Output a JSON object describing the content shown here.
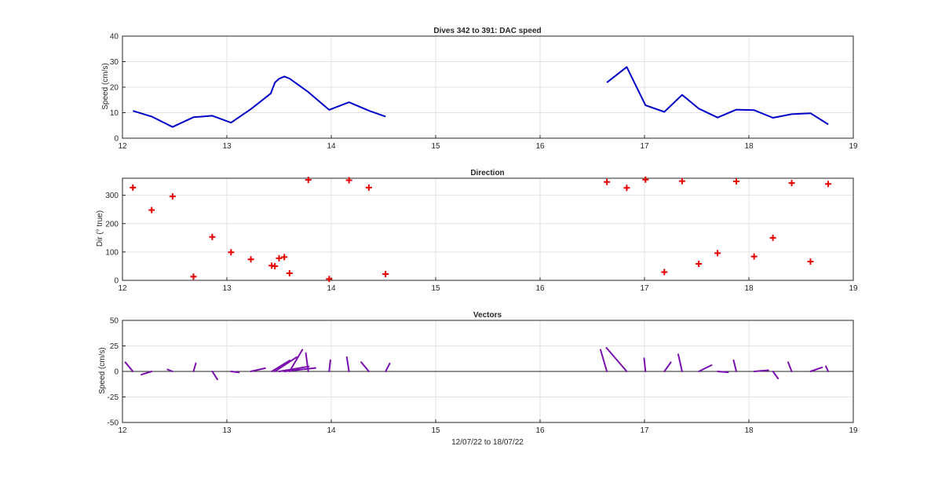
{
  "figure_xlabel": "12/07/22 to 18/07/22",
  "colors": {
    "speed": "#0000c8",
    "direction": "#e60000",
    "vectors": "#7a0fb0",
    "axes": "#262626"
  },
  "chart_data": [
    {
      "type": "line",
      "title": "Dives 342 to 391: DAC speed",
      "xlabel": "",
      "ylabel": "Speed (cm/s)",
      "xlim": [
        12,
        19
      ],
      "ylim": [
        0,
        40
      ],
      "xticks": [
        "12",
        "13",
        "14",
        "15",
        "16",
        "17",
        "18",
        "19"
      ],
      "yticks": [
        "0",
        "10",
        "20",
        "30",
        "40"
      ],
      "grid": true,
      "segments": [
        {
          "x": [
            12.1,
            12.28,
            12.48,
            12.68,
            12.86,
            13.04,
            13.23,
            13.42,
            13.46,
            13.5,
            13.55,
            13.6,
            13.78,
            13.98,
            14.17,
            14.36,
            14.52
          ],
          "y": [
            10.7,
            8.5,
            4.4,
            8.2,
            8.8,
            6.1,
            11.4,
            17.5,
            21.8,
            23.3,
            24.2,
            23.4,
            18.1,
            11.1,
            14.1,
            10.8,
            8.5
          ]
        },
        {
          "x": [
            16.64,
            16.83,
            17.01,
            17.19,
            17.36,
            17.52,
            17.7,
            17.88,
            18.05,
            18.23,
            18.41,
            18.59,
            18.76
          ],
          "y": [
            21.8,
            27.9,
            12.9,
            10.3,
            17.0,
            11.6,
            8.1,
            11.2,
            11.0,
            8.0,
            9.4,
            9.8,
            5.4
          ]
        }
      ]
    },
    {
      "type": "scatter",
      "title": "Direction",
      "xlabel": "",
      "ylabel": "Dir (° true)",
      "xlim": [
        12,
        19
      ],
      "ylim": [
        0,
        360
      ],
      "xticks": [
        "12",
        "13",
        "14",
        "15",
        "16",
        "17",
        "18",
        "19"
      ],
      "yticks": [
        "0",
        "100",
        "200",
        "300"
      ],
      "grid": true,
      "marker": "+",
      "x": [
        12.1,
        12.28,
        12.48,
        12.68,
        12.86,
        13.04,
        13.23,
        13.43,
        13.46,
        13.5,
        13.55,
        13.6,
        13.78,
        13.98,
        14.17,
        14.36,
        14.52,
        16.64,
        16.83,
        17.01,
        17.19,
        17.36,
        17.52,
        17.7,
        17.88,
        18.05,
        18.23,
        18.41,
        18.59,
        18.76
      ],
      "y": [
        327,
        248,
        296,
        13,
        153,
        99,
        74,
        52,
        50,
        78,
        82,
        25,
        354,
        5,
        353,
        327,
        22,
        347,
        326,
        355,
        29,
        350,
        58,
        96,
        349,
        84,
        150,
        343,
        66,
        340
      ]
    },
    {
      "type": "vector",
      "title": "Vectors",
      "xlabel": "",
      "ylabel": "Speed (cm/s)",
      "xlim": [
        12,
        19
      ],
      "ylim": [
        -50,
        50
      ],
      "xticks": [
        "12",
        "13",
        "14",
        "15",
        "16",
        "17",
        "18",
        "19"
      ],
      "yticks": [
        "-50",
        "-25",
        "0",
        "25",
        "50"
      ],
      "grid": true,
      "note_units": "direction in degrees true, speed in cm/s",
      "x": [
        12.1,
        12.28,
        12.48,
        12.68,
        12.86,
        13.04,
        13.23,
        13.43,
        13.46,
        13.5,
        13.55,
        13.6,
        13.78,
        13.98,
        14.17,
        14.36,
        14.52,
        16.64,
        16.83,
        17.01,
        17.19,
        17.36,
        17.52,
        17.7,
        17.88,
        18.05,
        18.23,
        18.41,
        18.59,
        18.76
      ],
      "speed": [
        10.7,
        8.5,
        4.4,
        8.2,
        8.8,
        6.1,
        11.4,
        17.5,
        21.8,
        23.3,
        24.2,
        23.4,
        18.1,
        11.1,
        14.1,
        10.8,
        8.5,
        21.8,
        27.9,
        12.9,
        10.3,
        17.0,
        11.6,
        8.1,
        11.2,
        11.0,
        8.0,
        9.4,
        9.8,
        5.4
      ],
      "direction": [
        327,
        248,
        296,
        13,
        153,
        99,
        74,
        52,
        50,
        78,
        82,
        25,
        354,
        5,
        353,
        327,
        22,
        347,
        326,
        355,
        29,
        350,
        58,
        96,
        349,
        84,
        150,
        343,
        66,
        340
      ]
    }
  ]
}
